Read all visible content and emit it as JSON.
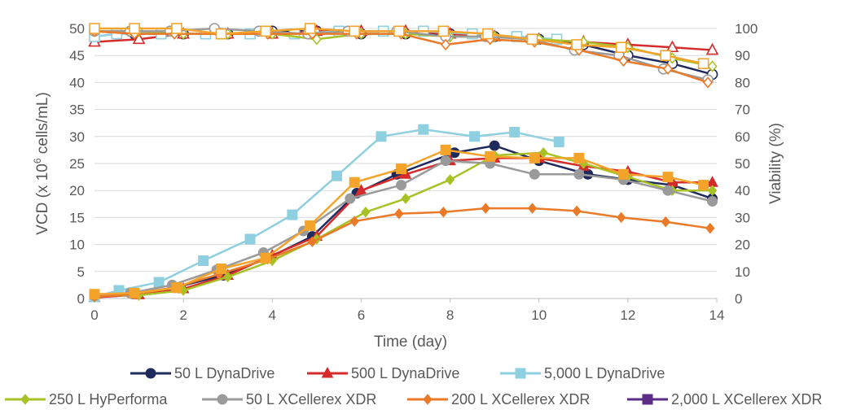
{
  "chart_data": {
    "type": "line",
    "xlabel": "Time (day)",
    "ylabel": "VCD (x 10",
    "ylabel_sup": "6",
    "ylabel_suffix": " cells/mL)",
    "y2label": "Viability (%)",
    "xlim": [
      0,
      14
    ],
    "ylim": [
      0,
      50
    ],
    "y2lim": [
      0,
      100
    ],
    "x_ticks": [
      "0",
      "2",
      "4",
      "6",
      "8",
      "10",
      "12",
      "14"
    ],
    "y_ticks": [
      "0",
      "5",
      "10",
      "15",
      "20",
      "25",
      "30",
      "35",
      "40",
      "45",
      "50"
    ],
    "y2_ticks": [
      "0",
      "10",
      "20",
      "30",
      "40",
      "50",
      "60",
      "70",
      "80",
      "90",
      "100"
    ],
    "grid": true,
    "legend_position": "bottom",
    "series": [
      {
        "name": "50 L DynaDrive",
        "color": "#1f2a5c",
        "marker": "circle",
        "vcd": {
          "x": [
            0,
            0.85,
            1.8,
            2.9,
            3.9,
            4.9,
            5.9,
            6.8,
            8.1,
            9.0,
            10.0,
            11.1,
            12.0,
            13.0,
            13.9
          ],
          "y": [
            0.5,
            0.9,
            2.0,
            4.3,
            7.5,
            11.5,
            19.5,
            23.0,
            27.0,
            28.3,
            25.5,
            23.0,
            22.0,
            21.0,
            18.5
          ]
        },
        "viability": {
          "x": [
            0,
            0.9,
            2.0,
            3.0,
            4.0,
            5.0,
            6.0,
            7.0,
            8.0,
            9.0,
            10.0,
            11.0,
            12.0,
            13.0,
            13.9
          ],
          "y": [
            99,
            98,
            98,
            98,
            99,
            99,
            98,
            98,
            98,
            97,
            96,
            94,
            90,
            87,
            83
          ]
        }
      },
      {
        "name": "500 L DynaDrive",
        "color": "#d62b2b",
        "marker": "triangle",
        "vcd": {
          "x": [
            0,
            1.0,
            2.0,
            3.0,
            4.0,
            5.0,
            6.0,
            7.0,
            8.0,
            9.0,
            10.0,
            11.0,
            12.0,
            13.0,
            13.9
          ],
          "y": [
            0.2,
            0.7,
            1.8,
            4.3,
            8.0,
            11.5,
            20.0,
            23.0,
            25.5,
            26.0,
            26.0,
            24.5,
            23.5,
            21.5,
            21.5
          ]
        },
        "viability": {
          "x": [
            0,
            1.0,
            2.0,
            3.0,
            4.0,
            5.0,
            6.0,
            7.0,
            8.0,
            9.0,
            10.0,
            11.0,
            12.0,
            13.0,
            13.9
          ],
          "y": [
            95,
            96,
            98,
            98,
            98,
            99,
            99,
            99,
            98,
            97,
            96,
            95,
            94,
            93,
            92
          ]
        }
      },
      {
        "name": "5,000 L DynaDrive",
        "color": "#8ecfe0",
        "marker": "square",
        "vcd": {
          "x": [
            0,
            0.55,
            1.45,
            2.45,
            3.5,
            4.45,
            5.45,
            6.45,
            7.4,
            8.55,
            9.45,
            10.45
          ],
          "y": [
            0.3,
            1.5,
            3.0,
            7.0,
            11.0,
            15.5,
            22.7,
            30.0,
            31.3,
            30.0,
            30.8,
            29.0
          ]
        },
        "viability": {
          "x": [
            0,
            0.5,
            1.5,
            2.5,
            3.5,
            4.5,
            5.5,
            6.5,
            7.4,
            8.5,
            9.5,
            10.4
          ],
          "y": [
            97,
            98,
            98,
            98,
            98,
            98,
            99,
            99,
            99,
            98,
            97,
            96
          ]
        }
      },
      {
        "name": "250 L HyPerforma",
        "color": "#a8c226",
        "marker": "diamond",
        "vcd": {
          "x": [
            0,
            1.0,
            2.0,
            3.0,
            4.0,
            5.0,
            6.1,
            7.0,
            8.0,
            9.0,
            10.1,
            11.0,
            12.0,
            13.0,
            13.9
          ],
          "y": [
            0.5,
            0.6,
            1.5,
            4.0,
            7.0,
            11.0,
            16.0,
            18.5,
            22.0,
            26.5,
            27.0,
            25.0,
            22.5,
            20.0,
            20.0
          ]
        },
        "viability": {
          "x": [
            0,
            1.0,
            2.0,
            3.0,
            4.0,
            5.0,
            6.0,
            7.0,
            8.0,
            9.0,
            10.0,
            11.0,
            12.0,
            13.0,
            13.9
          ],
          "y": [
            99,
            99,
            98,
            98,
            98,
            96,
            98,
            98,
            97,
            97,
            96,
            95,
            93,
            89,
            86
          ]
        }
      },
      {
        "name": "50 L XCellerex XDR",
        "color": "#9a9a9a",
        "marker": "circle",
        "vcd": {
          "x": [
            0,
            0.8,
            1.75,
            2.75,
            3.8,
            4.7,
            5.75,
            6.9,
            7.9,
            8.9,
            9.9,
            10.9,
            11.9,
            12.9,
            13.9
          ],
          "y": [
            0.5,
            1.0,
            2.5,
            5.3,
            8.5,
            12.5,
            18.5,
            21.0,
            25.5,
            25.0,
            23.0,
            23.0,
            22.0,
            20.0,
            18.0
          ]
        },
        "viability": {
          "x": [
            0,
            0.8,
            1.7,
            2.7,
            3.7,
            4.8,
            5.7,
            6.8,
            7.9,
            8.8,
            9.8,
            10.8,
            11.8,
            12.8,
            13.8
          ],
          "y": [
            99,
            99,
            99,
            100,
            99,
            98,
            99,
            99,
            97,
            97,
            96,
            92,
            90,
            85,
            81
          ]
        }
      },
      {
        "name": "200 L XCellerex XDR",
        "color": "#ea7a28",
        "marker": "diamond",
        "vcd": {
          "x": [
            0,
            0.9,
            1.8,
            2.8,
            3.9,
            4.9,
            5.85,
            6.85,
            7.85,
            8.8,
            9.85,
            10.85,
            11.85,
            12.85,
            13.85
          ],
          "y": [
            0.3,
            0.8,
            2.0,
            4.5,
            7.3,
            10.5,
            14.3,
            15.7,
            16.0,
            16.7,
            16.7,
            16.2,
            15.0,
            14.2,
            13.0
          ]
        },
        "viability": {
          "x": [
            0,
            0.9,
            1.8,
            2.8,
            3.9,
            4.9,
            5.9,
            6.9,
            7.9,
            8.9,
            9.9,
            10.9,
            11.9,
            12.9,
            13.8
          ],
          "y": [
            99,
            98,
            98,
            98,
            98,
            98,
            98,
            98,
            94,
            96,
            95,
            92,
            88,
            85,
            80
          ]
        }
      },
      {
        "name": "2,000 L XCellerex XDR",
        "color": "#5b2d87",
        "marker": "square",
        "vcd": {
          "x": [],
          "y": []
        },
        "viability": {
          "x": [],
          "y": []
        }
      },
      {
        "name": "2,000 L XCellerex XDR (orange overlay)",
        "legend": false,
        "color": "#f5a42b",
        "marker": "square",
        "vcd": {
          "x": [
            0,
            0.9,
            1.85,
            2.85,
            3.85,
            4.85,
            5.85,
            6.9,
            7.9,
            8.9,
            9.9,
            10.9,
            11.9,
            12.9,
            13.7
          ],
          "y": [
            0.8,
            1.0,
            2.0,
            5.5,
            7.5,
            13.5,
            21.5,
            24.0,
            27.5,
            26.3,
            26.0,
            26.0,
            23.0,
            22.5,
            21.0
          ]
        },
        "viability": {
          "x": [
            0,
            0.9,
            1.85,
            2.85,
            3.85,
            4.85,
            5.85,
            6.85,
            7.85,
            8.85,
            9.85,
            10.85,
            11.85,
            12.85,
            13.7
          ],
          "y": [
            100,
            100,
            100,
            98,
            99,
            100,
            99,
            99,
            99,
            98,
            96,
            94,
            93,
            90,
            87
          ]
        }
      }
    ]
  }
}
